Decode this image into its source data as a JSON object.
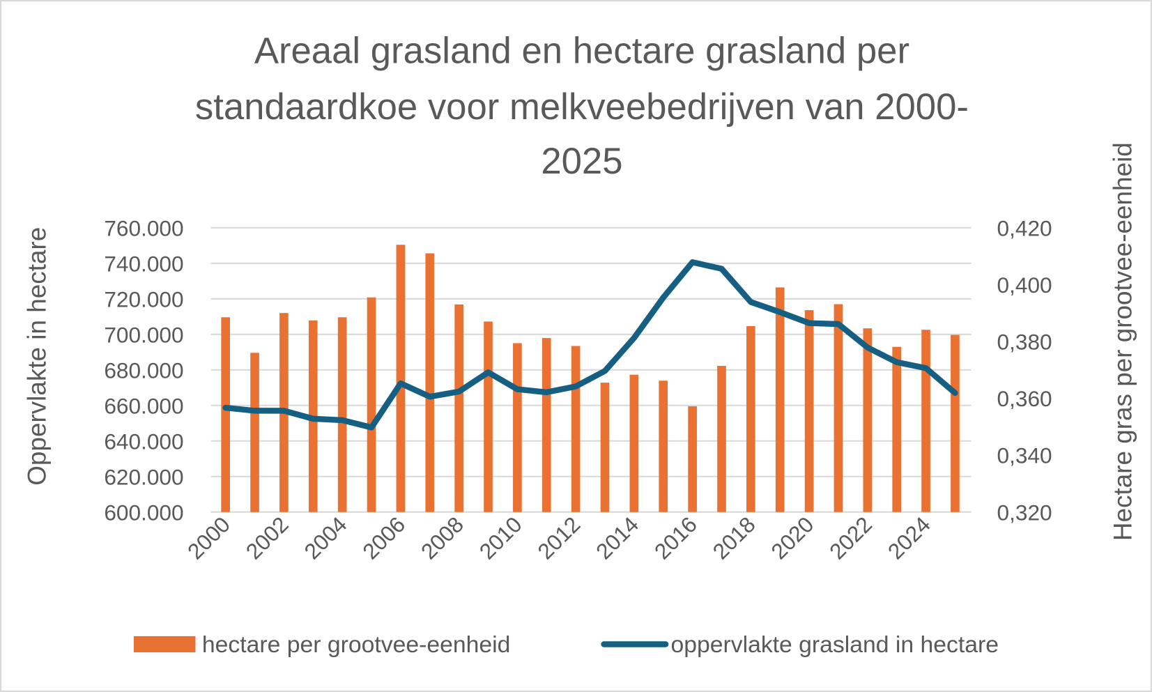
{
  "chart_data": {
    "type": "bar+line",
    "title_lines": [
      "Areaal grasland en hectare grasland per",
      "standaardkoe voor melkveebedrijven van 2000-",
      "2025"
    ],
    "ylabel_left": "Oppervlakte in hectare",
    "ylabel_right": "Hectare gras per grootvee-eenheid",
    "ylim_left": [
      600000,
      760000
    ],
    "ylim_right": [
      0.32,
      0.42
    ],
    "yticks_left": [
      "600.000",
      "620.000",
      "640.000",
      "660.000",
      "680.000",
      "700.000",
      "720.000",
      "740.000",
      "760.000"
    ],
    "yticks_right": [
      "0,320",
      "0,340",
      "0,360",
      "0,380",
      "0,400",
      "0,420"
    ],
    "grid": true,
    "legend_position": "bottom",
    "x": [
      2000,
      2001,
      2002,
      2003,
      2004,
      2005,
      2006,
      2007,
      2008,
      2009,
      2010,
      2011,
      2012,
      2013,
      2014,
      2015,
      2016,
      2017,
      2018,
      2019,
      2020,
      2021,
      2022,
      2023,
      2024,
      2025
    ],
    "xtick_labels": [
      "2000",
      "2002",
      "2004",
      "2006",
      "2008",
      "2010",
      "2012",
      "2014",
      "2016",
      "2018",
      "2020",
      "2022",
      "2024"
    ],
    "series": [
      {
        "name": "hectare per grootvee-eenheid",
        "type": "bar",
        "axis": "right",
        "color": "#E97132",
        "values": [
          0.3885,
          0.376,
          0.39,
          0.3874,
          0.3885,
          0.3955,
          0.414,
          0.411,
          0.393,
          0.387,
          0.3794,
          0.3812,
          0.3784,
          0.3655,
          0.3683,
          0.3662,
          0.3572,
          0.3714,
          0.3854,
          0.399,
          0.391,
          0.3931,
          0.3846,
          0.3781,
          0.3841,
          0.3823
        ]
      },
      {
        "name": "oppervlakte grasland in hectare",
        "type": "line",
        "axis": "left",
        "color": "#156082",
        "values": [
          658700,
          657000,
          657000,
          652500,
          651700,
          647600,
          672400,
          664900,
          667800,
          678600,
          669100,
          667400,
          670700,
          679400,
          698000,
          720700,
          740600,
          736900,
          718200,
          712500,
          706300,
          705800,
          692600,
          684300,
          681000,
          667000
        ]
      }
    ]
  }
}
